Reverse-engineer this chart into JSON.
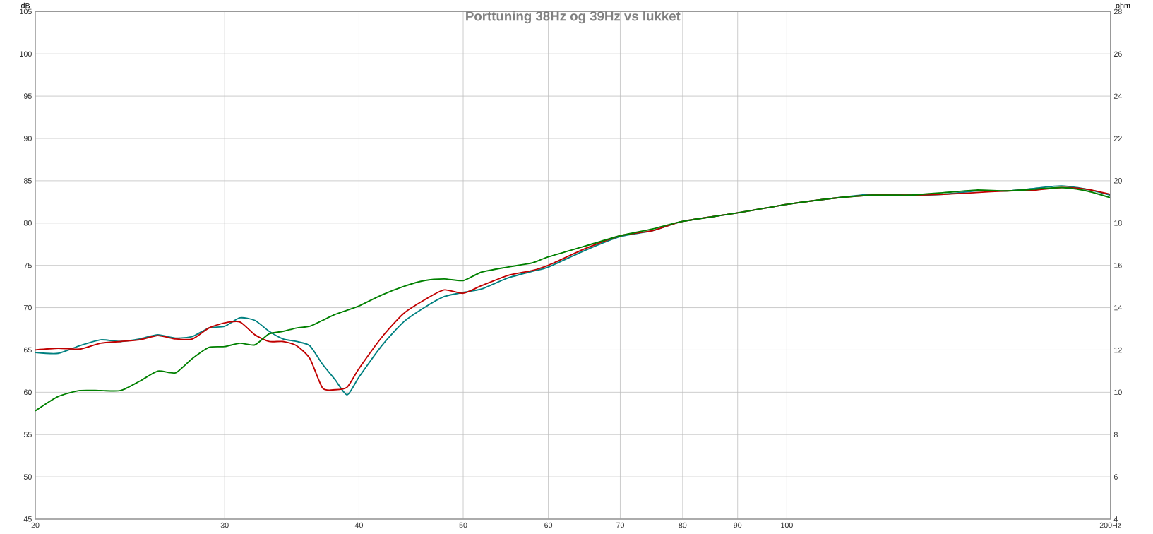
{
  "chart_data": {
    "type": "line",
    "title": "Porttuning 38Hz og 39Hz vs lukket",
    "ylabel": "dB",
    "y2label": "ohm",
    "x": [
      20,
      21,
      22,
      23,
      24,
      25,
      26,
      27,
      28,
      29,
      30,
      31,
      32,
      33,
      34,
      35,
      36,
      37,
      38,
      39,
      40,
      42,
      44,
      46,
      48,
      50,
      52,
      55,
      58,
      60,
      65,
      70,
      75,
      80,
      90,
      100,
      110,
      120,
      130,
      140,
      150,
      160,
      170,
      180,
      190,
      200
    ],
    "series": [
      {
        "color": "#008080",
        "values": [
          64.7,
          64.6,
          65.5,
          66.2,
          66.0,
          66.3,
          66.8,
          66.4,
          66.6,
          67.6,
          67.8,
          68.8,
          68.5,
          67.2,
          66.3,
          66.0,
          65.5,
          63.3,
          61.5,
          59.7,
          61.8,
          65.5,
          68.3,
          70.0,
          71.3,
          71.8,
          72.2,
          73.5,
          74.3,
          74.8,
          76.8,
          78.4,
          79.1,
          80.2,
          81.2,
          82.2,
          82.9,
          83.4,
          83.3,
          83.4,
          83.8,
          83.8,
          84.1,
          84.4,
          84.0,
          83.3
        ]
      },
      {
        "color": "#c00000",
        "values": [
          65.0,
          65.2,
          65.1,
          65.8,
          66.0,
          66.2,
          66.7,
          66.3,
          66.3,
          67.6,
          68.2,
          68.3,
          66.8,
          66.0,
          66.0,
          65.5,
          64.0,
          60.5,
          60.3,
          60.6,
          62.8,
          66.5,
          69.3,
          70.9,
          72.1,
          71.7,
          72.6,
          73.8,
          74.4,
          75.0,
          77.0,
          78.5,
          79.1,
          80.2,
          81.2,
          82.2,
          82.9,
          83.3,
          83.3,
          83.4,
          83.6,
          83.8,
          83.9,
          84.2,
          84.0,
          83.4
        ]
      },
      {
        "color": "#008000",
        "values": [
          57.8,
          59.5,
          60.2,
          60.2,
          60.2,
          61.3,
          62.5,
          62.3,
          64.0,
          65.3,
          65.4,
          65.8,
          65.6,
          66.9,
          67.2,
          67.6,
          67.8,
          68.5,
          69.2,
          69.7,
          70.2,
          71.5,
          72.5,
          73.2,
          73.4,
          73.2,
          74.2,
          74.8,
          75.3,
          76.0,
          77.3,
          78.5,
          79.3,
          80.2,
          81.2,
          82.2,
          82.9,
          83.3,
          83.3,
          83.6,
          83.9,
          83.8,
          84.0,
          84.2,
          83.8,
          83.0
        ]
      }
    ],
    "xlim": [
      20,
      200
    ],
    "xticks": [
      20,
      30,
      40,
      50,
      60,
      70,
      80,
      90,
      100,
      {
        "value": 200,
        "label": "200Hz"
      }
    ],
    "ylim": [
      45,
      105
    ],
    "yticks": [
      45,
      50,
      55,
      60,
      65,
      70,
      75,
      80,
      85,
      90,
      95,
      100,
      105
    ],
    "y2lim": [
      4,
      28
    ],
    "y2ticks": [
      4,
      6,
      8,
      10,
      12,
      14,
      16,
      18,
      20,
      22,
      24,
      26,
      28
    ],
    "log": "x",
    "grid": true,
    "marker": "none"
  }
}
